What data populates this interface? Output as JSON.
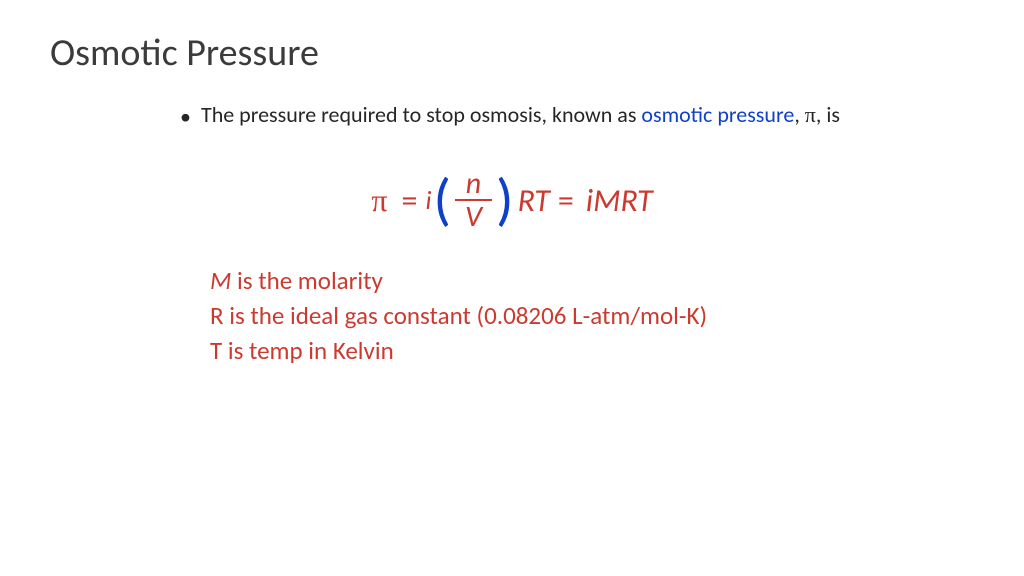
{
  "title": "Osmotic Pressure",
  "bullet": {
    "lead": "The pressure required to stop osmosis, known as ",
    "term": "osmotic pressure",
    "mid": ", ",
    "pi": "π",
    "tail": ", is"
  },
  "equation": {
    "pi": "π",
    "eq": "=",
    "i": "i",
    "lparen": "(",
    "num": "n",
    "den": "V",
    "rparen": ")",
    "rt": "RT",
    "eq2": "=",
    "rhs": "iMRT"
  },
  "defs": {
    "m_sym": "M",
    "m_rest": " is the molarity",
    "r": "R is the ideal gas constant (0.08206 L-atm/mol-K)",
    "t": "T is temp in Kelvin"
  },
  "colors": {
    "title": "#3b3b3b",
    "body": "#262626",
    "term_blue": "#1040c8",
    "accent_red": "#cc3a2f",
    "background": "#ffffff"
  },
  "fonts": {
    "title_size_pt": 30,
    "body_size_pt": 17,
    "equation_size_pt": 24,
    "defs_size_pt": 19
  }
}
